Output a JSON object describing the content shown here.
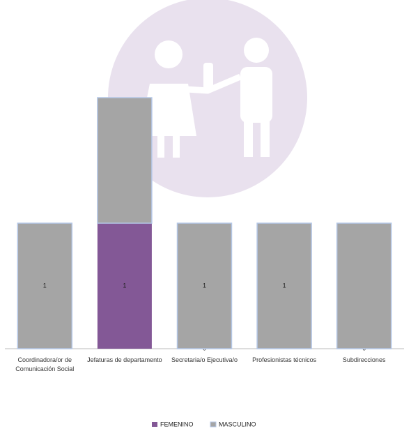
{
  "chart_data": {
    "type": "stacked-bar",
    "categories": [
      "Coordinadora/or de Comunicación Social",
      "Jefaturas de departamento",
      "Secretaria/o Ejecutiva/o",
      "Profesionistas técnicos",
      "Subdirecciones"
    ],
    "series": [
      {
        "name": "FEMENINO",
        "color": "#835896",
        "values": [
          0,
          1,
          0,
          0,
          0
        ],
        "value_labels": [
          null,
          "1",
          "0",
          null,
          "0"
        ]
      },
      {
        "name": "MASCULINO",
        "color": "#a5a5a5",
        "values": [
          1,
          1,
          1,
          1,
          1
        ],
        "value_labels": [
          "1",
          null,
          "1",
          "1",
          null
        ]
      }
    ],
    "ylim": [
      0,
      2
    ]
  }
}
